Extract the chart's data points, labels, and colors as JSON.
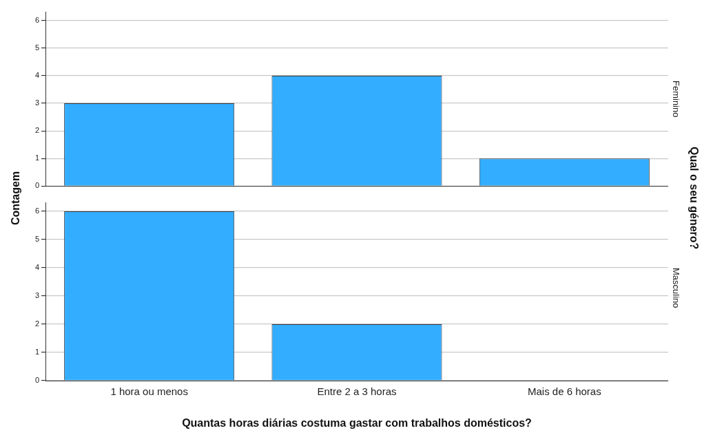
{
  "chart_data": [
    {
      "type": "bar",
      "ylabel": "Contagem",
      "y2label": "Feminino",
      "annotations": [
        "Qual o seu género?"
      ],
      "categories": [
        null,
        null,
        null
      ],
      "values": [
        3,
        4,
        1
      ],
      "color": "#33adff",
      "ylim": [
        0,
        6.3
      ],
      "yticks": [
        0,
        1,
        2,
        3,
        4,
        5,
        6
      ],
      "grid": "y",
      "tick_labels": "y",
      "legend": false
    },
    {
      "type": "bar",
      "xlabel": "Quantas horas diárias costuma gastar com trabalhos domésticos?",
      "y2label": "Masculino",
      "categories": [
        "1 hora ou menos",
        "Entre 2 a 3 horas",
        "Mais de 6 horas"
      ],
      "values": [
        6,
        2,
        0
      ],
      "color": "#33adff",
      "ylim": [
        0,
        6.3
      ],
      "yticks": [
        0,
        1,
        2,
        3,
        4,
        5,
        6
      ],
      "grid": "y",
      "legend": false
    }
  ]
}
